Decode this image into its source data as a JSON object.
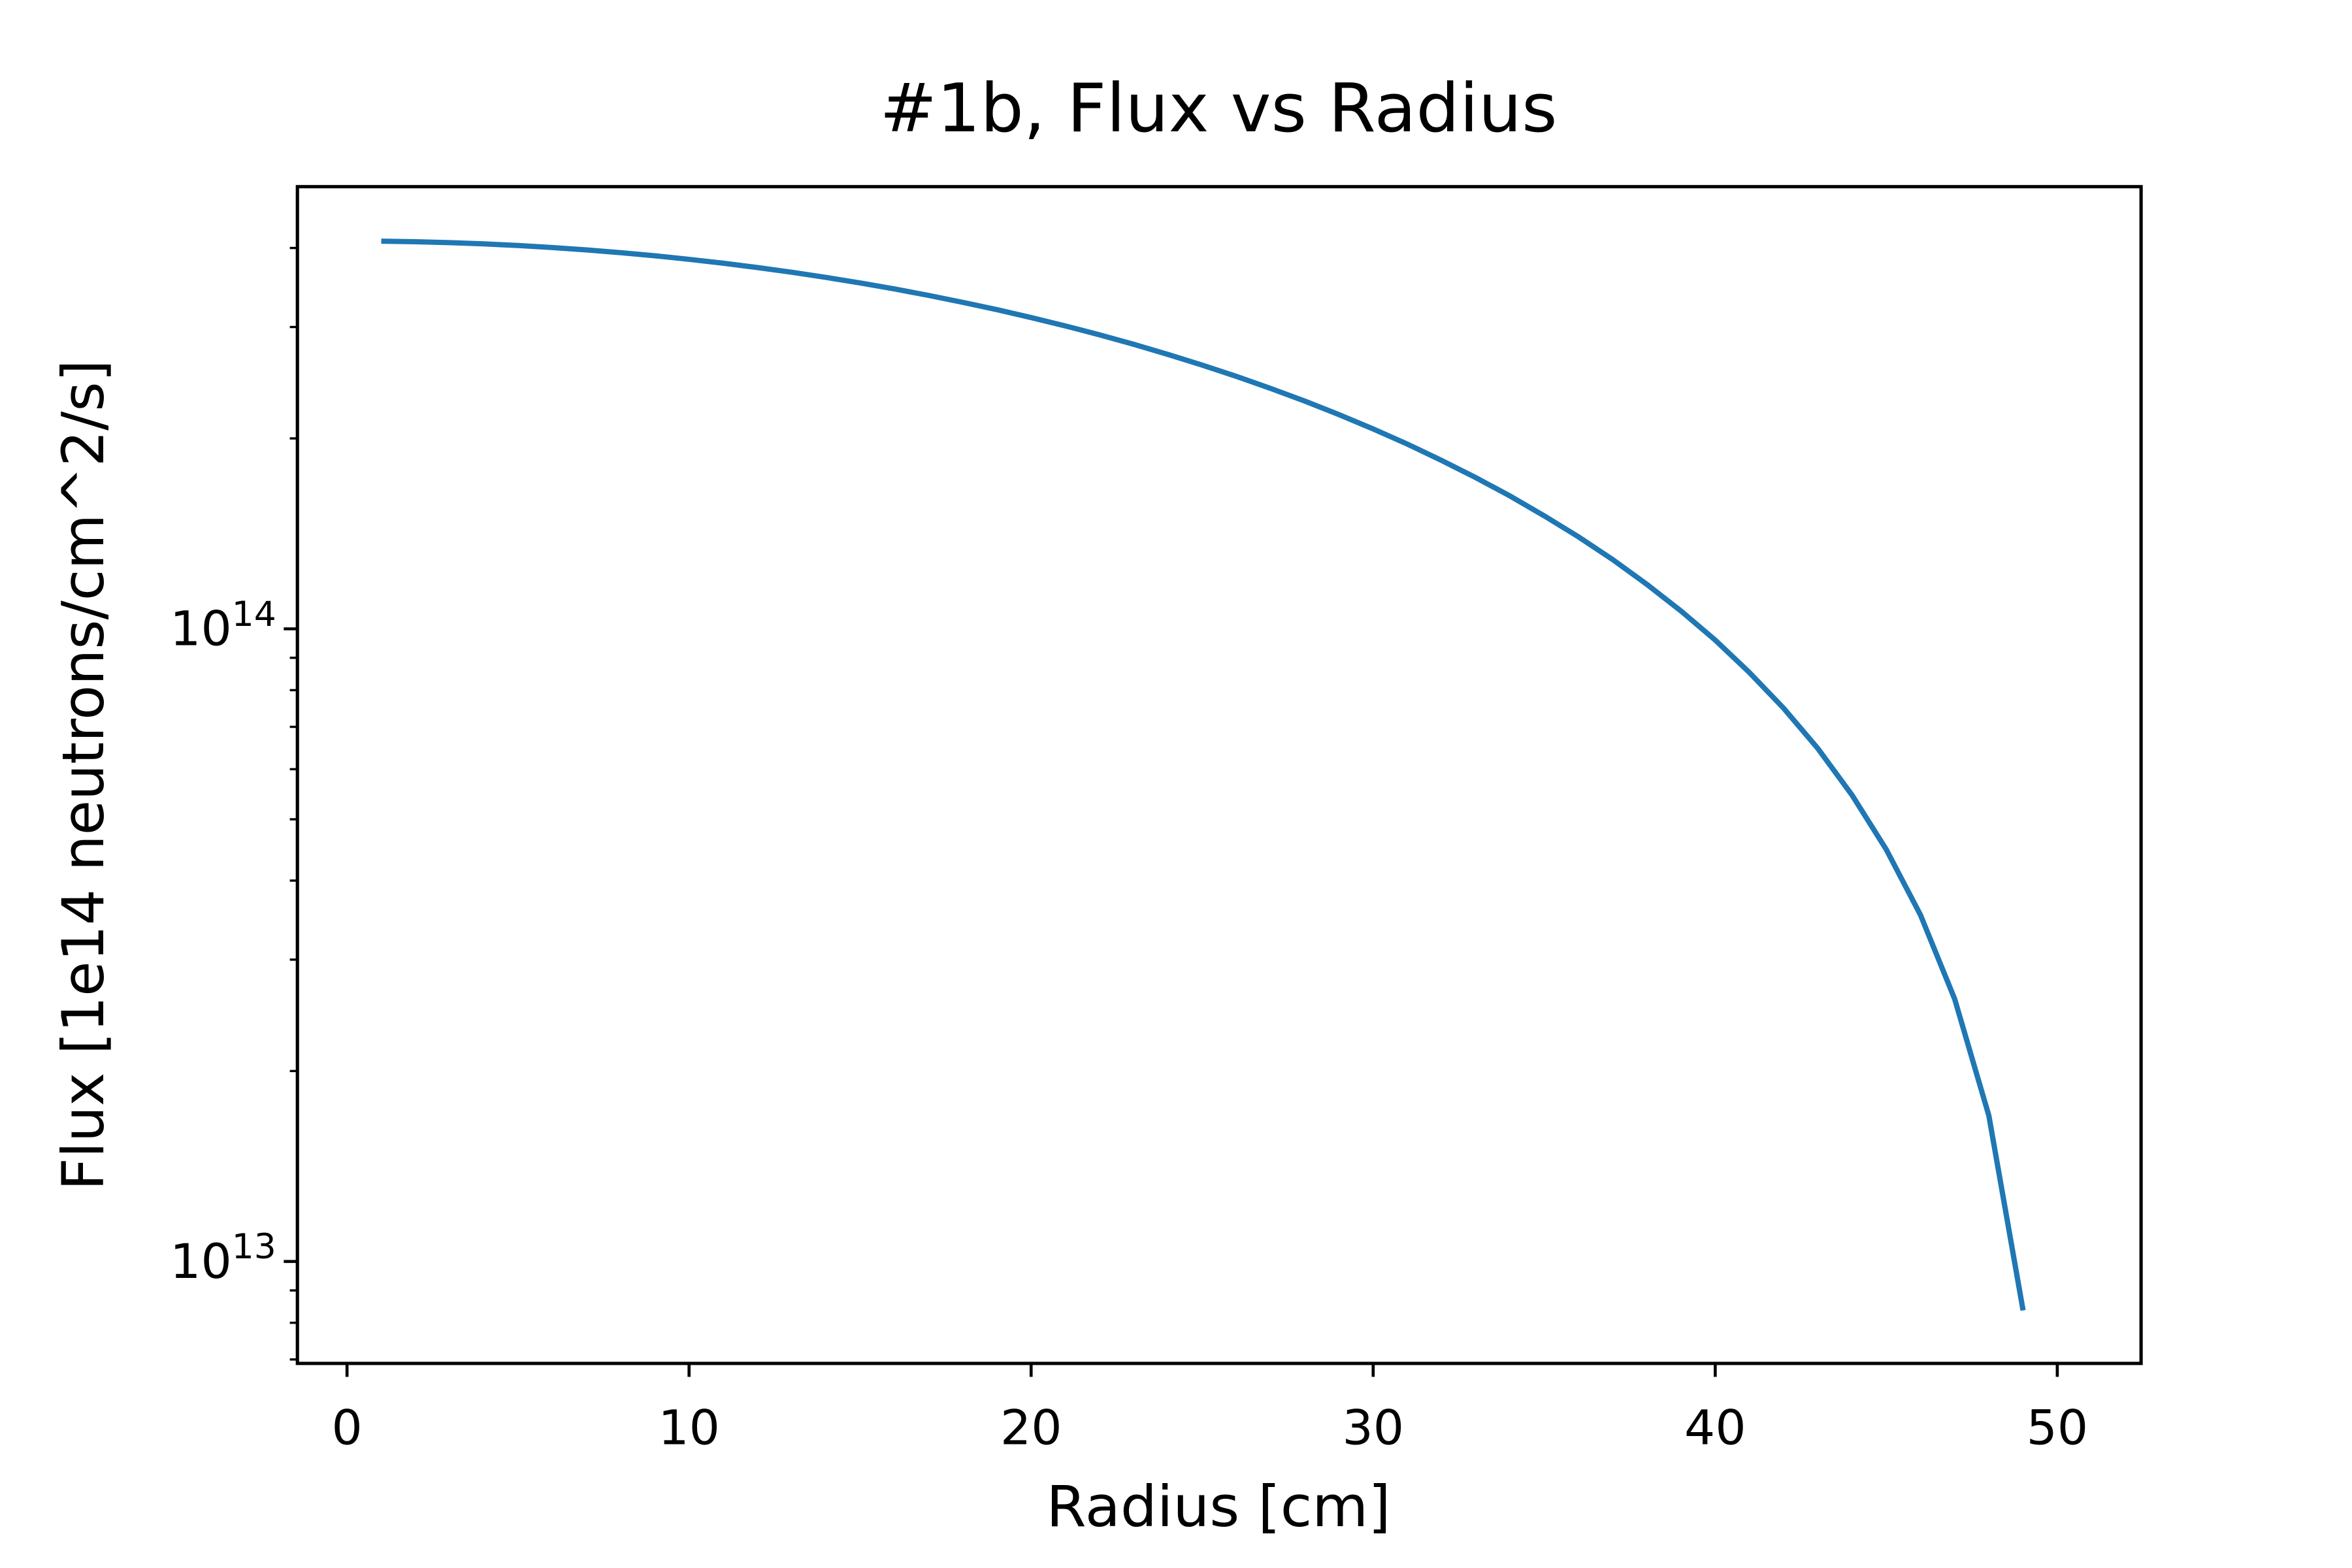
{
  "chart_data": {
    "type": "line",
    "title": "#1b, Flux vs Radius",
    "xlabel": "Radius [cm]",
    "ylabel": "Flux [1e14 neutrons/cm^2/s]",
    "yscale": "log",
    "xlim": [
      -1.45,
      52.45
    ],
    "ylim": [
      6900000000000.0,
      500000000000000.0
    ],
    "xticks": [
      0,
      10,
      20,
      30,
      40,
      50
    ],
    "yticks": [
      {
        "value": 10000000000000.0,
        "label": "10^13"
      },
      {
        "value": 100000000000000.0,
        "label": "10^14"
      }
    ],
    "yticks_minor": [
      7000000000000.0,
      8000000000000.0,
      9000000000000.0,
      20000000000000.0,
      30000000000000.0,
      40000000000000.0,
      50000000000000.0,
      60000000000000.0,
      70000000000000.0,
      80000000000000.0,
      90000000000000.0,
      200000000000000.0,
      300000000000000.0,
      400000000000000.0
    ],
    "x": [
      1,
      2,
      3,
      4,
      5,
      6,
      7,
      8,
      9,
      10,
      11,
      12,
      13,
      14,
      15,
      16,
      17,
      18,
      19,
      20,
      21,
      22,
      23,
      24,
      25,
      26,
      27,
      28,
      29,
      30,
      31,
      32,
      33,
      34,
      35,
      36,
      37,
      38,
      39,
      40,
      41,
      42,
      43,
      44,
      45,
      46,
      47,
      48,
      49
    ],
    "series": [
      {
        "color": "#1f77b4",
        "values": [
          410000000000000.0,
          409200000000000.0,
          407900000000000.0,
          406000000000000.0,
          403600000000000.0,
          400600000000000.0,
          397200000000000.0,
          393200000000000.0,
          388800000000000.0,
          383800000000000.0,
          378400000000000.0,
          372500000000000.0,
          366200000000000.0,
          359400000000000.0,
          352200000000000.0,
          344600000000000.0,
          336600000000000.0,
          328200000000000.0,
          319600000000000.0,
          310500000000000.0,
          301200000000000.0,
          291600000000000.0,
          281700000000000.0,
          271500000000000.0,
          261200000000000.0,
          250700000000000.0,
          239900000000000.0,
          229100000000000.0,
          218100000000000.0,
          207000000000000.0,
          195900000000000.0,
          184600000000000.0,
          173400000000000.0,
          162200000000000.0,
          150900000000000.0,
          139800000000000.0,
          128700000000000.0,
          117600000000000.0,
          106700000000000.0,
          96000000000000.0,
          85300000000000.0,
          74900000000000.0,
          64700000000000.0,
          54600000000000.0,
          44800000000000.0,
          35300000000000.0,
          26000000000000.0,
          17000000000000.0,
          8370000000000.0
        ]
      }
    ]
  }
}
